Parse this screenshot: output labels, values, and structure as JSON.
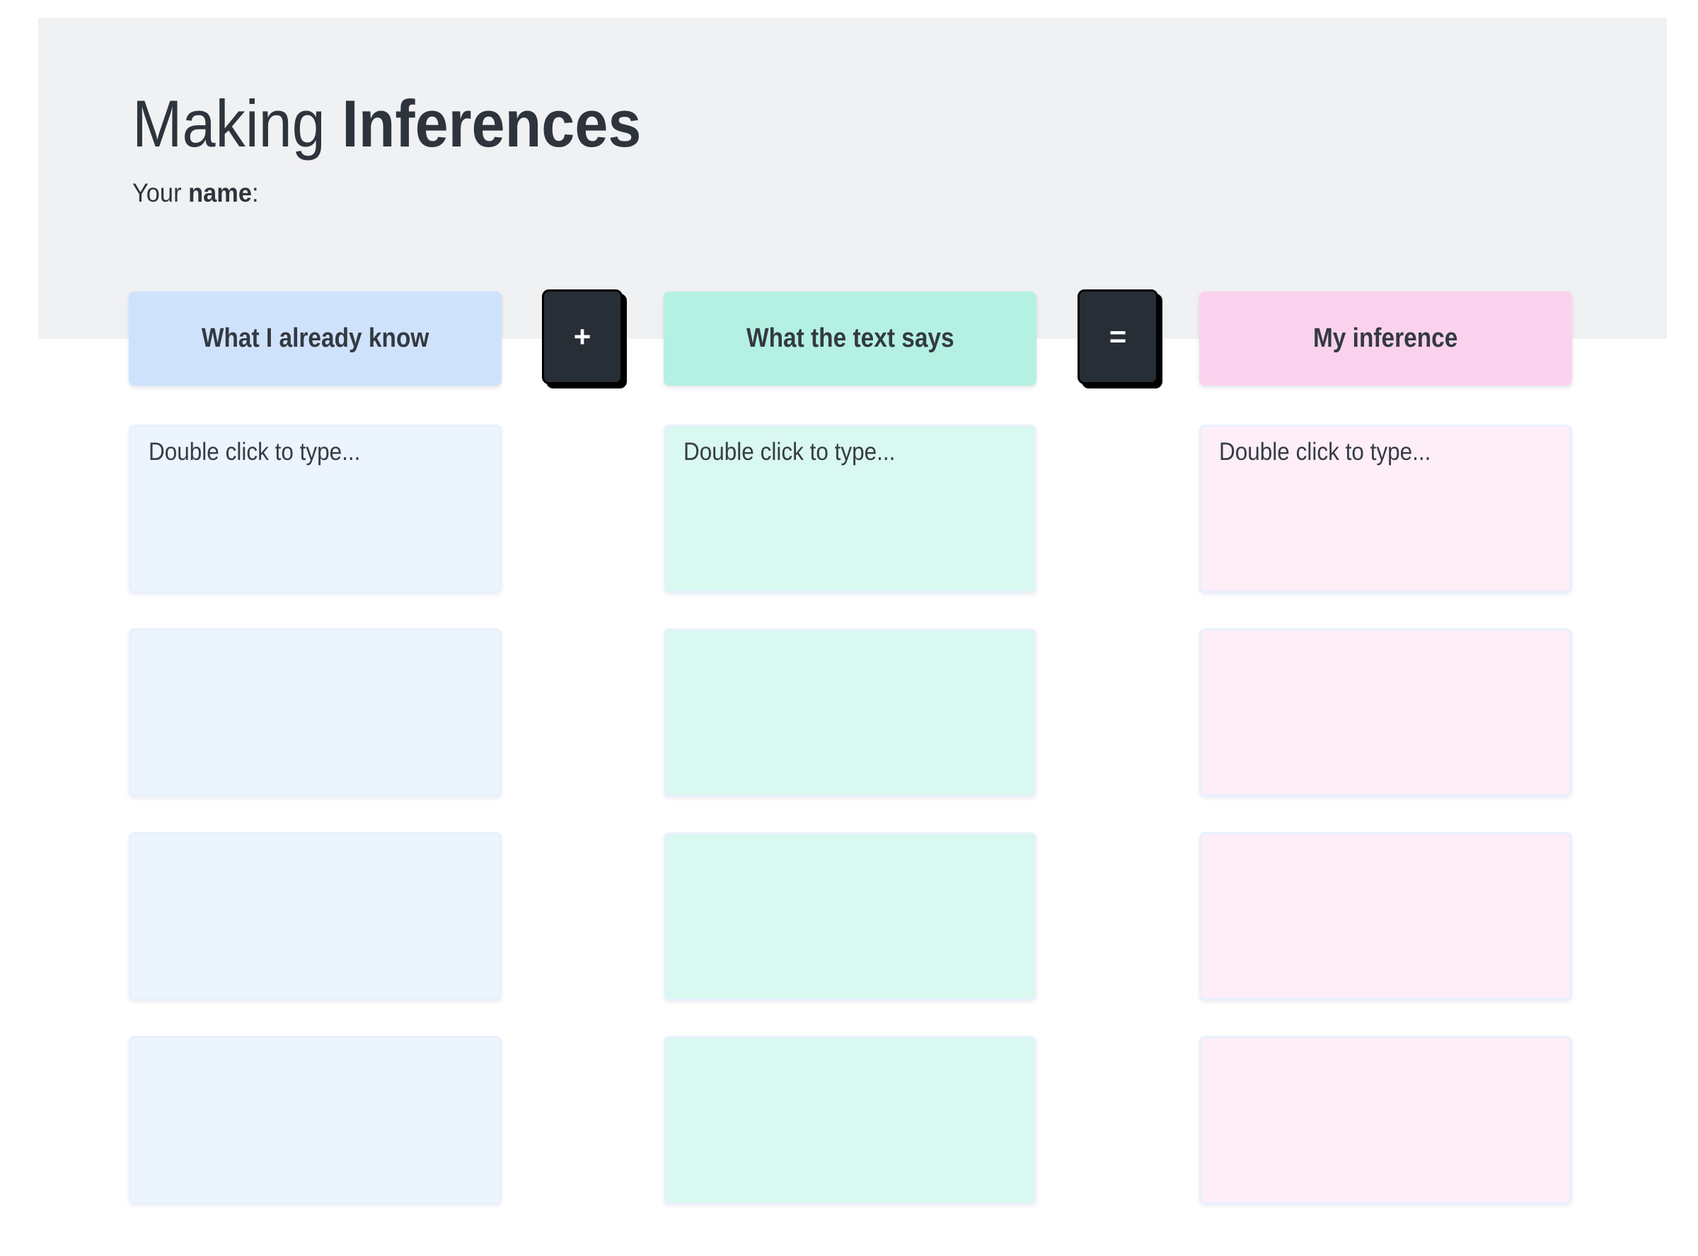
{
  "titlebar": {
    "title_regular": "Making ",
    "title_bold": "Inferences",
    "name_regular": "Your ",
    "name_bold": "name",
    "name_punct": ":"
  },
  "columns": [
    {
      "header_label": "What I already know",
      "placeholder": "Double click to type...",
      "header_color": "#cfe2fc",
      "box_color": "#ecf4fe",
      "row_count": 4
    },
    {
      "header_label": "What the text says",
      "placeholder": "Double click to type...",
      "header_color": "#b4f1e2",
      "box_color": "#d9f8ef",
      "row_count": 4
    },
    {
      "header_label": "My inference",
      "placeholder": "Double click to type...",
      "header_color": "#fbd2ee",
      "box_color": "#fdeef8",
      "row_count": 4
    }
  ],
  "operators": [
    {
      "symbol": "+",
      "label": "plus"
    },
    {
      "symbol": "=",
      "label": "equals"
    }
  ],
  "theme": {
    "page_bg": "#ffffff",
    "panel_bg": "#f0f1f3",
    "text_color": "#2e343c",
    "header_text_color": "#333942",
    "note_text_color": "#363c44",
    "note_border": "#e8f1fd",
    "badge_bg": "#282e36",
    "badge_border": "#000000",
    "badge_text": "#ffffff"
  }
}
